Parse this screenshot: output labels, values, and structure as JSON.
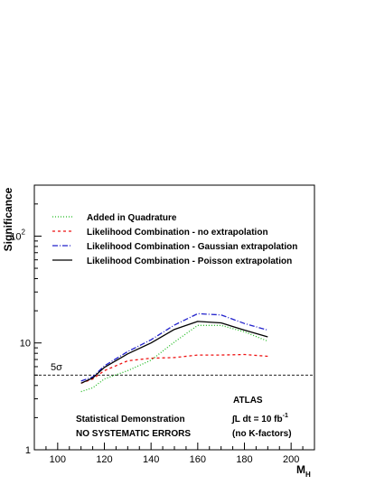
{
  "chart_data": {
    "type": "line",
    "ylabel": "Significance",
    "xlabel_main": "M",
    "xlabel_sub": "H",
    "y_scale": "log",
    "xlim": [
      90,
      210
    ],
    "ylim": [
      1,
      300
    ],
    "x_ticks": [
      100,
      120,
      140,
      160,
      180,
      200
    ],
    "y_tick_labels": [
      {
        "value": 1,
        "label": "1"
      },
      {
        "value": 10,
        "label": "10"
      },
      {
        "value": 100,
        "label": "10",
        "sup": "2"
      }
    ],
    "reference_line": {
      "label": "5σ",
      "value": 5
    },
    "series": [
      {
        "name": "Added in Quadrature",
        "color": "#22bb22",
        "dash": "1,2",
        "x": [
          110,
          115,
          120,
          130,
          140,
          150,
          160,
          170,
          180,
          190
        ],
        "y": [
          3.5,
          3.8,
          4.6,
          5.5,
          6.9,
          10.2,
          14.6,
          14.6,
          12.7,
          10.4
        ]
      },
      {
        "name": "Likelihood Combination - no extrapolation",
        "color": "#ee1111",
        "dash": "3,3",
        "x": [
          110,
          115,
          120,
          130,
          140,
          150,
          160,
          170,
          180,
          190
        ],
        "y": [
          4.2,
          4.6,
          5.5,
          6.8,
          7.2,
          7.3,
          7.7,
          7.7,
          7.8,
          7.5
        ]
      },
      {
        "name": "Likelihood Combination - Gaussian extrapolation",
        "color": "#2222cc",
        "dash": "6,2,1,2",
        "x": [
          110,
          115,
          120,
          130,
          140,
          150,
          160,
          170,
          180,
          190
        ],
        "y": [
          4.4,
          4.8,
          6.1,
          8.3,
          10.7,
          14.7,
          18.8,
          18.3,
          15.2,
          13.2
        ]
      },
      {
        "name": "Likelihood Combination - Poisson extrapolation",
        "color": "#000000",
        "dash": "",
        "x": [
          110,
          115,
          120,
          130,
          140,
          150,
          160,
          170,
          180,
          190
        ],
        "y": [
          4.2,
          4.7,
          5.9,
          7.9,
          10.0,
          13.4,
          15.9,
          15.4,
          13.2,
          11.4
        ]
      }
    ],
    "annotations": {
      "experiment": "ATLAS",
      "lumi_prefix": "∫L dt = 10 fb",
      "lumi_sup": "-1",
      "kfactors": "(no K-factors)",
      "demo": "Statistical Demonstration",
      "systematics": "NO SYSTEMATIC ERRORS"
    }
  }
}
